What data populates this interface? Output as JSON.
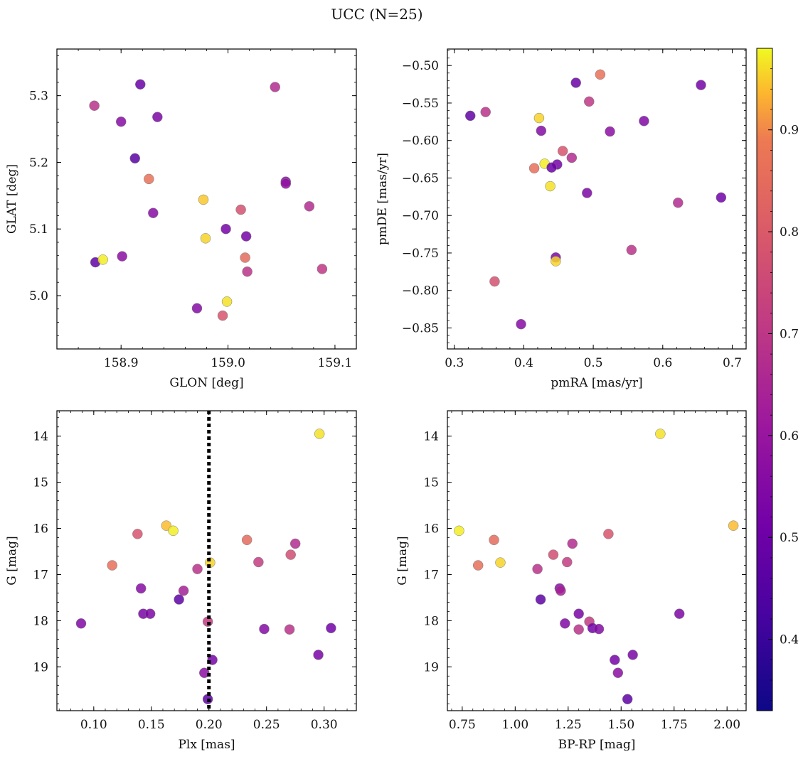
{
  "figure_title": "UCC (N=25)",
  "colorbar": {
    "range": [
      0.33,
      0.98
    ],
    "ticks": [
      0.4,
      0.5,
      0.6,
      0.7,
      0.8,
      0.9
    ],
    "tick_labels": [
      "0.4",
      "0.5",
      "0.6",
      "0.7",
      "0.8",
      "0.9"
    ],
    "colormap": "plasma"
  },
  "chart_data": [
    {
      "type": "scatter",
      "xlabel": "GLON [deg]",
      "ylabel": "GLAT [deg]",
      "xlim": [
        158.84,
        159.12
      ],
      "ylim": [
        4.92,
        5.37
      ],
      "x_ticks": [
        158.9,
        159.0,
        159.1
      ],
      "x_tick_labels": [
        "158.9",
        "159.0",
        "159.1"
      ],
      "y_ticks": [
        5.0,
        5.1,
        5.2,
        5.3
      ],
      "y_tick_labels": [
        "5.0",
        "5.1",
        "5.2",
        "5.3"
      ],
      "points": [
        {
          "x": 158.875,
          "y": 5.285,
          "c": 0.62
        },
        {
          "x": 158.918,
          "y": 5.317,
          "c": 0.39
        },
        {
          "x": 158.9,
          "y": 5.261,
          "c": 0.47
        },
        {
          "x": 158.934,
          "y": 5.268,
          "c": 0.44
        },
        {
          "x": 159.044,
          "y": 5.313,
          "c": 0.6
        },
        {
          "x": 158.913,
          "y": 5.206,
          "c": 0.35
        },
        {
          "x": 158.926,
          "y": 5.175,
          "c": 0.84
        },
        {
          "x": 159.054,
          "y": 5.171,
          "c": 0.47
        },
        {
          "x": 159.054,
          "y": 5.168,
          "c": 0.5
        },
        {
          "x": 158.977,
          "y": 5.144,
          "c": 0.94
        },
        {
          "x": 159.076,
          "y": 5.134,
          "c": 0.6
        },
        {
          "x": 159.012,
          "y": 5.129,
          "c": 0.73
        },
        {
          "x": 158.93,
          "y": 5.124,
          "c": 0.47
        },
        {
          "x": 158.998,
          "y": 5.1,
          "c": 0.42
        },
        {
          "x": 159.017,
          "y": 5.089,
          "c": 0.42
        },
        {
          "x": 158.979,
          "y": 5.086,
          "c": 0.95
        },
        {
          "x": 158.901,
          "y": 5.059,
          "c": 0.48
        },
        {
          "x": 159.016,
          "y": 5.057,
          "c": 0.82
        },
        {
          "x": 158.876,
          "y": 5.05,
          "c": 0.37
        },
        {
          "x": 158.883,
          "y": 5.054,
          "c": 0.97
        },
        {
          "x": 159.088,
          "y": 5.04,
          "c": 0.64
        },
        {
          "x": 159.018,
          "y": 5.036,
          "c": 0.63
        },
        {
          "x": 158.999,
          "y": 4.991,
          "c": 0.96
        },
        {
          "x": 158.971,
          "y": 4.981,
          "c": 0.46
        },
        {
          "x": 158.995,
          "y": 4.97,
          "c": 0.74
        }
      ]
    },
    {
      "type": "scatter",
      "xlabel": "pmRA [mas/yr]",
      "ylabel": "pmDE [mas/yr]",
      "xlim": [
        0.29,
        0.72
      ],
      "ylim": [
        -0.878,
        -0.478
      ],
      "x_ticks": [
        0.3,
        0.4,
        0.5,
        0.6,
        0.7
      ],
      "x_tick_labels": [
        "0.3",
        "0.4",
        "0.5",
        "0.6",
        "0.7"
      ],
      "y_ticks": [
        -0.85,
        -0.8,
        -0.75,
        -0.7,
        -0.65,
        -0.6,
        -0.55,
        -0.5
      ],
      "y_tick_labels": [
        "−0.85",
        "−0.80",
        "−0.75",
        "−0.70",
        "−0.65",
        "−0.60",
        "−0.55",
        "−0.50"
      ],
      "points": [
        {
          "x": 0.51,
          "y": -0.512,
          "c": 0.84
        },
        {
          "x": 0.475,
          "y": -0.523,
          "c": 0.39
        },
        {
          "x": 0.655,
          "y": -0.526,
          "c": 0.42
        },
        {
          "x": 0.494,
          "y": -0.548,
          "c": 0.64
        },
        {
          "x": 0.345,
          "y": -0.562,
          "c": 0.62
        },
        {
          "x": 0.323,
          "y": -0.567,
          "c": 0.37
        },
        {
          "x": 0.422,
          "y": -0.57,
          "c": 0.95
        },
        {
          "x": 0.573,
          "y": -0.574,
          "c": 0.45
        },
        {
          "x": 0.425,
          "y": -0.587,
          "c": 0.46
        },
        {
          "x": 0.524,
          "y": -0.588,
          "c": 0.48
        },
        {
          "x": 0.456,
          "y": -0.614,
          "c": 0.74
        },
        {
          "x": 0.469,
          "y": -0.623,
          "c": 0.6
        },
        {
          "x": 0.448,
          "y": -0.632,
          "c": 0.42
        },
        {
          "x": 0.43,
          "y": -0.631,
          "c": 0.97
        },
        {
          "x": 0.415,
          "y": -0.637,
          "c": 0.83
        },
        {
          "x": 0.44,
          "y": -0.636,
          "c": 0.39
        },
        {
          "x": 0.438,
          "y": -0.661,
          "c": 0.96
        },
        {
          "x": 0.491,
          "y": -0.67,
          "c": 0.44
        },
        {
          "x": 0.684,
          "y": -0.676,
          "c": 0.41
        },
        {
          "x": 0.622,
          "y": -0.683,
          "c": 0.6
        },
        {
          "x": 0.555,
          "y": -0.746,
          "c": 0.63
        },
        {
          "x": 0.446,
          "y": -0.756,
          "c": 0.44
        },
        {
          "x": 0.446,
          "y": -0.761,
          "c": 0.95
        },
        {
          "x": 0.358,
          "y": -0.788,
          "c": 0.73
        },
        {
          "x": 0.396,
          "y": -0.845,
          "c": 0.47
        }
      ]
    },
    {
      "type": "scatter",
      "xlabel": "Plx [mas]",
      "ylabel": "G [mag]",
      "xlim": [
        0.068,
        0.328
      ],
      "ylim": [
        19.95,
        13.45
      ],
      "x_ticks": [
        0.1,
        0.15,
        0.2,
        0.25,
        0.3
      ],
      "x_tick_labels": [
        "0.10",
        "0.15",
        "0.20",
        "0.25",
        "0.30"
      ],
      "y_ticks": [
        14,
        15,
        16,
        17,
        18,
        19
      ],
      "y_tick_labels": [
        "14",
        "15",
        "16",
        "17",
        "18",
        "19"
      ],
      "vline": {
        "x": 0.2,
        "style": "dotted",
        "color": "#000000"
      },
      "points": [
        {
          "x": 0.296,
          "y": 13.95,
          "c": 0.96
        },
        {
          "x": 0.163,
          "y": 15.94,
          "c": 0.93
        },
        {
          "x": 0.169,
          "y": 16.05,
          "c": 0.97
        },
        {
          "x": 0.138,
          "y": 16.12,
          "c": 0.74
        },
        {
          "x": 0.233,
          "y": 16.25,
          "c": 0.82
        },
        {
          "x": 0.275,
          "y": 16.33,
          "c": 0.6
        },
        {
          "x": 0.271,
          "y": 16.57,
          "c": 0.72
        },
        {
          "x": 0.243,
          "y": 16.73,
          "c": 0.66
        },
        {
          "x": 0.201,
          "y": 16.74,
          "c": 0.95
        },
        {
          "x": 0.116,
          "y": 16.8,
          "c": 0.83
        },
        {
          "x": 0.19,
          "y": 16.88,
          "c": 0.62
        },
        {
          "x": 0.141,
          "y": 17.3,
          "c": 0.47
        },
        {
          "x": 0.178,
          "y": 17.35,
          "c": 0.56
        },
        {
          "x": 0.174,
          "y": 17.54,
          "c": 0.36
        },
        {
          "x": 0.143,
          "y": 17.85,
          "c": 0.43
        },
        {
          "x": 0.149,
          "y": 17.85,
          "c": 0.44
        },
        {
          "x": 0.199,
          "y": 18.02,
          "c": 0.65
        },
        {
          "x": 0.089,
          "y": 18.06,
          "c": 0.45
        },
        {
          "x": 0.306,
          "y": 18.16,
          "c": 0.41
        },
        {
          "x": 0.248,
          "y": 18.18,
          "c": 0.46
        },
        {
          "x": 0.27,
          "y": 18.19,
          "c": 0.62
        },
        {
          "x": 0.295,
          "y": 18.74,
          "c": 0.43
        },
        {
          "x": 0.203,
          "y": 18.85,
          "c": 0.42
        },
        {
          "x": 0.196,
          "y": 19.13,
          "c": 0.48
        },
        {
          "x": 0.199,
          "y": 19.7,
          "c": 0.36
        }
      ]
    },
    {
      "type": "scatter",
      "xlabel": "BP-RP [mag]",
      "ylabel": "G [mag]",
      "xlim": [
        0.68,
        2.09
      ],
      "ylim": [
        19.95,
        13.45
      ],
      "x_ticks": [
        0.75,
        1.0,
        1.25,
        1.5,
        1.75,
        2.0
      ],
      "x_tick_labels": [
        "0.75",
        "1.00",
        "1.25",
        "1.50",
        "1.75",
        "2.00"
      ],
      "y_ticks": [
        14,
        15,
        16,
        17,
        18,
        19
      ],
      "y_tick_labels": [
        "14",
        "15",
        "16",
        "17",
        "18",
        "19"
      ],
      "points": [
        {
          "x": 1.685,
          "y": 13.95,
          "c": 0.96
        },
        {
          "x": 2.03,
          "y": 15.94,
          "c": 0.93
        },
        {
          "x": 0.735,
          "y": 16.05,
          "c": 0.97
        },
        {
          "x": 1.44,
          "y": 16.12,
          "c": 0.74
        },
        {
          "x": 0.9,
          "y": 16.25,
          "c": 0.82
        },
        {
          "x": 1.27,
          "y": 16.33,
          "c": 0.6
        },
        {
          "x": 1.18,
          "y": 16.57,
          "c": 0.72
        },
        {
          "x": 1.245,
          "y": 16.73,
          "c": 0.66
        },
        {
          "x": 0.93,
          "y": 16.74,
          "c": 0.95
        },
        {
          "x": 0.825,
          "y": 16.8,
          "c": 0.83
        },
        {
          "x": 1.105,
          "y": 16.88,
          "c": 0.62
        },
        {
          "x": 1.21,
          "y": 17.3,
          "c": 0.47
        },
        {
          "x": 1.215,
          "y": 17.35,
          "c": 0.56
        },
        {
          "x": 1.12,
          "y": 17.54,
          "c": 0.36
        },
        {
          "x": 1.3,
          "y": 17.85,
          "c": 0.43
        },
        {
          "x": 1.775,
          "y": 17.85,
          "c": 0.44
        },
        {
          "x": 1.35,
          "y": 18.02,
          "c": 0.65
        },
        {
          "x": 1.235,
          "y": 18.06,
          "c": 0.45
        },
        {
          "x": 1.365,
          "y": 18.16,
          "c": 0.41
        },
        {
          "x": 1.395,
          "y": 18.18,
          "c": 0.46
        },
        {
          "x": 1.3,
          "y": 18.19,
          "c": 0.62
        },
        {
          "x": 1.555,
          "y": 18.74,
          "c": 0.43
        },
        {
          "x": 1.47,
          "y": 18.85,
          "c": 0.42
        },
        {
          "x": 1.485,
          "y": 19.13,
          "c": 0.48
        },
        {
          "x": 1.53,
          "y": 19.7,
          "c": 0.36
        }
      ]
    }
  ]
}
